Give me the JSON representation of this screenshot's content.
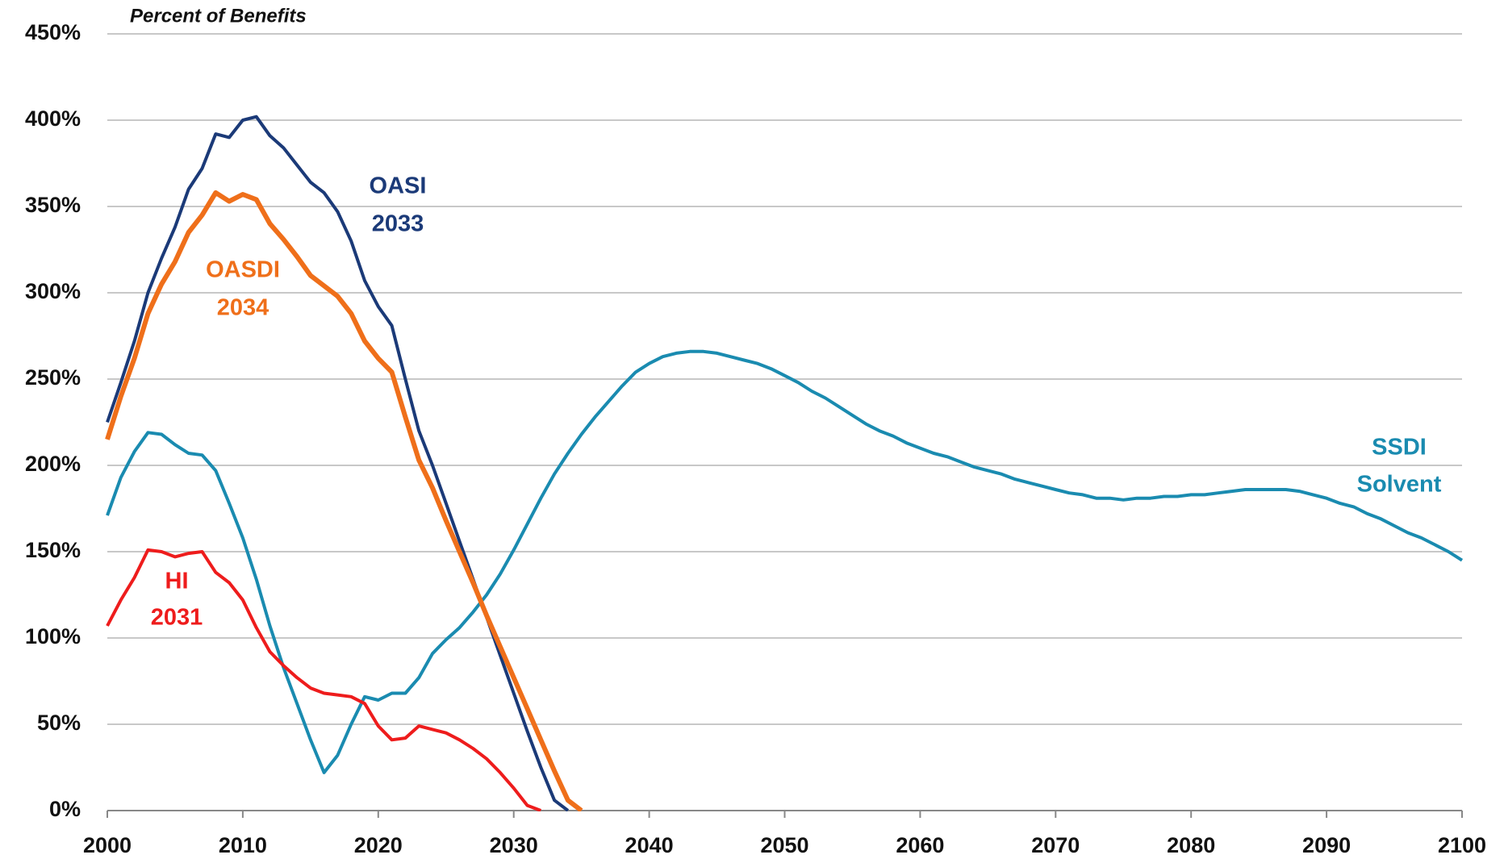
{
  "chart_data": {
    "type": "line",
    "y_label": "Percent of Benefits",
    "x": [
      2000,
      2001,
      2002,
      2003,
      2004,
      2005,
      2006,
      2007,
      2008,
      2009,
      2010,
      2011,
      2012,
      2013,
      2014,
      2015,
      2016,
      2017,
      2018,
      2019,
      2020,
      2021,
      2022,
      2023,
      2024,
      2025,
      2026,
      2027,
      2028,
      2029,
      2030,
      2031,
      2032,
      2033,
      2034,
      2035,
      2036,
      2037,
      2038,
      2039,
      2040,
      2041,
      2042,
      2043,
      2044,
      2045,
      2046,
      2047,
      2048,
      2049,
      2050,
      2051,
      2052,
      2053,
      2054,
      2055,
      2056,
      2057,
      2058,
      2059,
      2060,
      2061,
      2062,
      2063,
      2064,
      2065,
      2066,
      2067,
      2068,
      2069,
      2070,
      2071,
      2072,
      2073,
      2074,
      2075,
      2076,
      2077,
      2078,
      2079,
      2080,
      2081,
      2082,
      2083,
      2084,
      2085,
      2086,
      2087,
      2088,
      2089,
      2090,
      2091,
      2092,
      2093,
      2094,
      2095,
      2096,
      2097,
      2098,
      2099,
      2100
    ],
    "xlim": [
      2000,
      2100
    ],
    "xticks": [
      2000,
      2010,
      2020,
      2030,
      2040,
      2050,
      2060,
      2070,
      2080,
      2090,
      2100
    ],
    "ylim": [
      0,
      450
    ],
    "yticks": [
      {
        "value": 0,
        "label": "0%"
      },
      {
        "value": 50,
        "label": "50%"
      },
      {
        "value": 100,
        "label": "100%"
      },
      {
        "value": 150,
        "label": "150%"
      },
      {
        "value": 200,
        "label": "200%"
      },
      {
        "value": 250,
        "label": "250%"
      },
      {
        "value": 300,
        "label": "300%"
      },
      {
        "value": 350,
        "label": "350%"
      },
      {
        "value": 400,
        "label": "400%"
      },
      {
        "value": 450,
        "label": "450%"
      }
    ],
    "grid": true,
    "series": [
      {
        "name": "SSDI",
        "note": "Solvent",
        "color": "#1a8bb0",
        "values": [
          171,
          193,
          208,
          219,
          218,
          212,
          207,
          206,
          197,
          178,
          158,
          134,
          107,
          83,
          62,
          41,
          22,
          32,
          50,
          66,
          64,
          68,
          68,
          77,
          91,
          99,
          106,
          115,
          125,
          137,
          151,
          166,
          181,
          195,
          207,
          218,
          228,
          237,
          246,
          254,
          259,
          263,
          265,
          266,
          266,
          265,
          263,
          261,
          259,
          256,
          252,
          248,
          243,
          239,
          234,
          229,
          224,
          220,
          217,
          213,
          210,
          207,
          205,
          202,
          199,
          197,
          195,
          192,
          190,
          188,
          186,
          184,
          183,
          181,
          181,
          180,
          181,
          181,
          182,
          182,
          183,
          183,
          184,
          185,
          186,
          186,
          186,
          186,
          185,
          183,
          181,
          178,
          176,
          172,
          169,
          165,
          161,
          158,
          154,
          150,
          145
        ]
      },
      {
        "name": "HI",
        "note": "2031",
        "color": "#ee1c1c",
        "values": [
          107,
          122,
          135,
          151,
          150,
          147,
          149,
          150,
          138,
          132,
          122,
          106,
          92,
          84,
          77,
          71,
          68,
          67,
          66,
          62,
          49,
          41,
          42,
          49,
          47,
          45,
          41,
          36,
          30,
          22,
          13,
          3,
          0,
          null,
          null,
          null,
          null,
          null,
          null,
          null,
          null,
          null,
          null,
          null,
          null,
          null,
          null,
          null,
          null,
          null,
          null,
          null,
          null,
          null,
          null,
          null,
          null,
          null,
          null,
          null,
          null,
          null,
          null,
          null,
          null,
          null,
          null,
          null,
          null,
          null,
          null,
          null,
          null,
          null,
          null,
          null,
          null,
          null,
          null,
          null,
          null,
          null,
          null,
          null,
          null,
          null,
          null,
          null,
          null,
          null,
          null,
          null,
          null,
          null,
          null,
          null,
          null,
          null,
          null,
          null,
          null
        ]
      },
      {
        "name": "OASI",
        "note": "2033",
        "color": "#1b3a78",
        "values": [
          225,
          248,
          272,
          300,
          320,
          338,
          360,
          372,
          392,
          390,
          400,
          402,
          391,
          384,
          374,
          364,
          358,
          347,
          330,
          307,
          292,
          281,
          250,
          220,
          200,
          178,
          156,
          134,
          112,
          90,
          68,
          46,
          25,
          6,
          0,
          null,
          null,
          null,
          null,
          null,
          null,
          null,
          null,
          null,
          null,
          null,
          null,
          null,
          null,
          null,
          null,
          null,
          null,
          null,
          null,
          null,
          null,
          null,
          null,
          null,
          null,
          null,
          null,
          null,
          null,
          null,
          null,
          null,
          null,
          null,
          null,
          null,
          null,
          null,
          null,
          null,
          null,
          null,
          null,
          null,
          null,
          null,
          null,
          null,
          null,
          null,
          null,
          null,
          null,
          null,
          null,
          null,
          null,
          null,
          null,
          null,
          null,
          null,
          null,
          null,
          null
        ]
      },
      {
        "name": "OASDI",
        "note": "2034",
        "color": "#ef6f1a",
        "values": [
          215,
          240,
          262,
          288,
          305,
          318,
          335,
          345,
          358,
          353,
          357,
          354,
          340,
          331,
          321,
          310,
          304,
          298,
          288,
          272,
          262,
          254,
          228,
          203,
          187,
          168,
          150,
          132,
          113,
          95,
          77,
          59,
          41,
          23,
          6,
          0,
          null,
          null,
          null,
          null,
          null,
          null,
          null,
          null,
          null,
          null,
          null,
          null,
          null,
          null,
          null,
          null,
          null,
          null,
          null,
          null,
          null,
          null,
          null,
          null,
          null,
          null,
          null,
          null,
          null,
          null,
          null,
          null,
          null,
          null,
          null,
          null,
          null,
          null,
          null,
          null,
          null,
          null,
          null,
          null,
          null,
          null,
          null,
          null,
          null,
          null,
          null,
          null,
          null,
          null,
          null,
          null,
          null,
          null,
          null,
          null,
          null,
          null,
          null,
          null,
          null
        ]
      }
    ]
  }
}
